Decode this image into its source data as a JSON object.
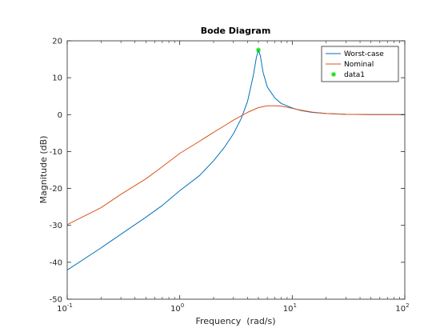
{
  "chart_data": {
    "type": "line",
    "title": "Bode Diagram",
    "xlabel": "Frequency  (rad/s)",
    "ylabel": "Magnitude (dB)",
    "xscale": "log",
    "xlim": [
      0.1,
      100
    ],
    "ylim": [
      -50,
      20
    ],
    "xticks": [
      0.1,
      1,
      10,
      100
    ],
    "xtick_labels": [
      {
        "base": "10",
        "exp": "-1"
      },
      {
        "base": "10",
        "exp": "0"
      },
      {
        "base": "10",
        "exp": "1"
      },
      {
        "base": "10",
        "exp": "2"
      }
    ],
    "yticks": [
      -50,
      -40,
      -30,
      -20,
      -10,
      0,
      10,
      20
    ],
    "ytick_labels": [
      "-50",
      "-40",
      "-30",
      "-20",
      "-10",
      "0",
      "10",
      "20"
    ],
    "grid": false,
    "legend_position": "top-right",
    "series": [
      {
        "name": "Worst-case",
        "color": "#0072BD",
        "style": "line",
        "x": [
          0.1,
          0.2,
          0.3,
          0.5,
          0.7,
          1,
          1.5,
          2,
          2.5,
          3,
          3.5,
          4,
          4.5,
          4.8,
          5,
          5.2,
          5.5,
          6,
          7,
          8,
          10,
          12,
          15,
          20,
          30,
          50,
          100
        ],
        "y": [
          -42.1,
          -36.1,
          -32.4,
          -27.8,
          -24.6,
          -20.6,
          -16.5,
          -12.5,
          -8.8,
          -5.2,
          -1.2,
          3.5,
          10.5,
          15.5,
          17.5,
          16.0,
          11.5,
          7.5,
          4.5,
          3.0,
          1.8,
          1.1,
          0.6,
          0.3,
          0.1,
          0.02,
          0
        ]
      },
      {
        "name": "Nominal",
        "color": "#D95319",
        "style": "line",
        "x": [
          0.1,
          0.2,
          0.3,
          0.5,
          0.7,
          1,
          1.5,
          2,
          2.5,
          3,
          4,
          5,
          6,
          7,
          8,
          10,
          12,
          15,
          20,
          30,
          50,
          100
        ],
        "y": [
          -29.8,
          -25.2,
          -21.6,
          -17.4,
          -14.1,
          -10.5,
          -7.2,
          -4.8,
          -3.0,
          -1.5,
          0.6,
          1.9,
          2.4,
          2.4,
          2.3,
          1.7,
          1.2,
          0.7,
          0.3,
          0.1,
          0.02,
          0
        ]
      },
      {
        "name": "data1",
        "color": "#00DD00",
        "style": "marker",
        "x": [
          5
        ],
        "y": [
          17.5
        ]
      }
    ]
  }
}
